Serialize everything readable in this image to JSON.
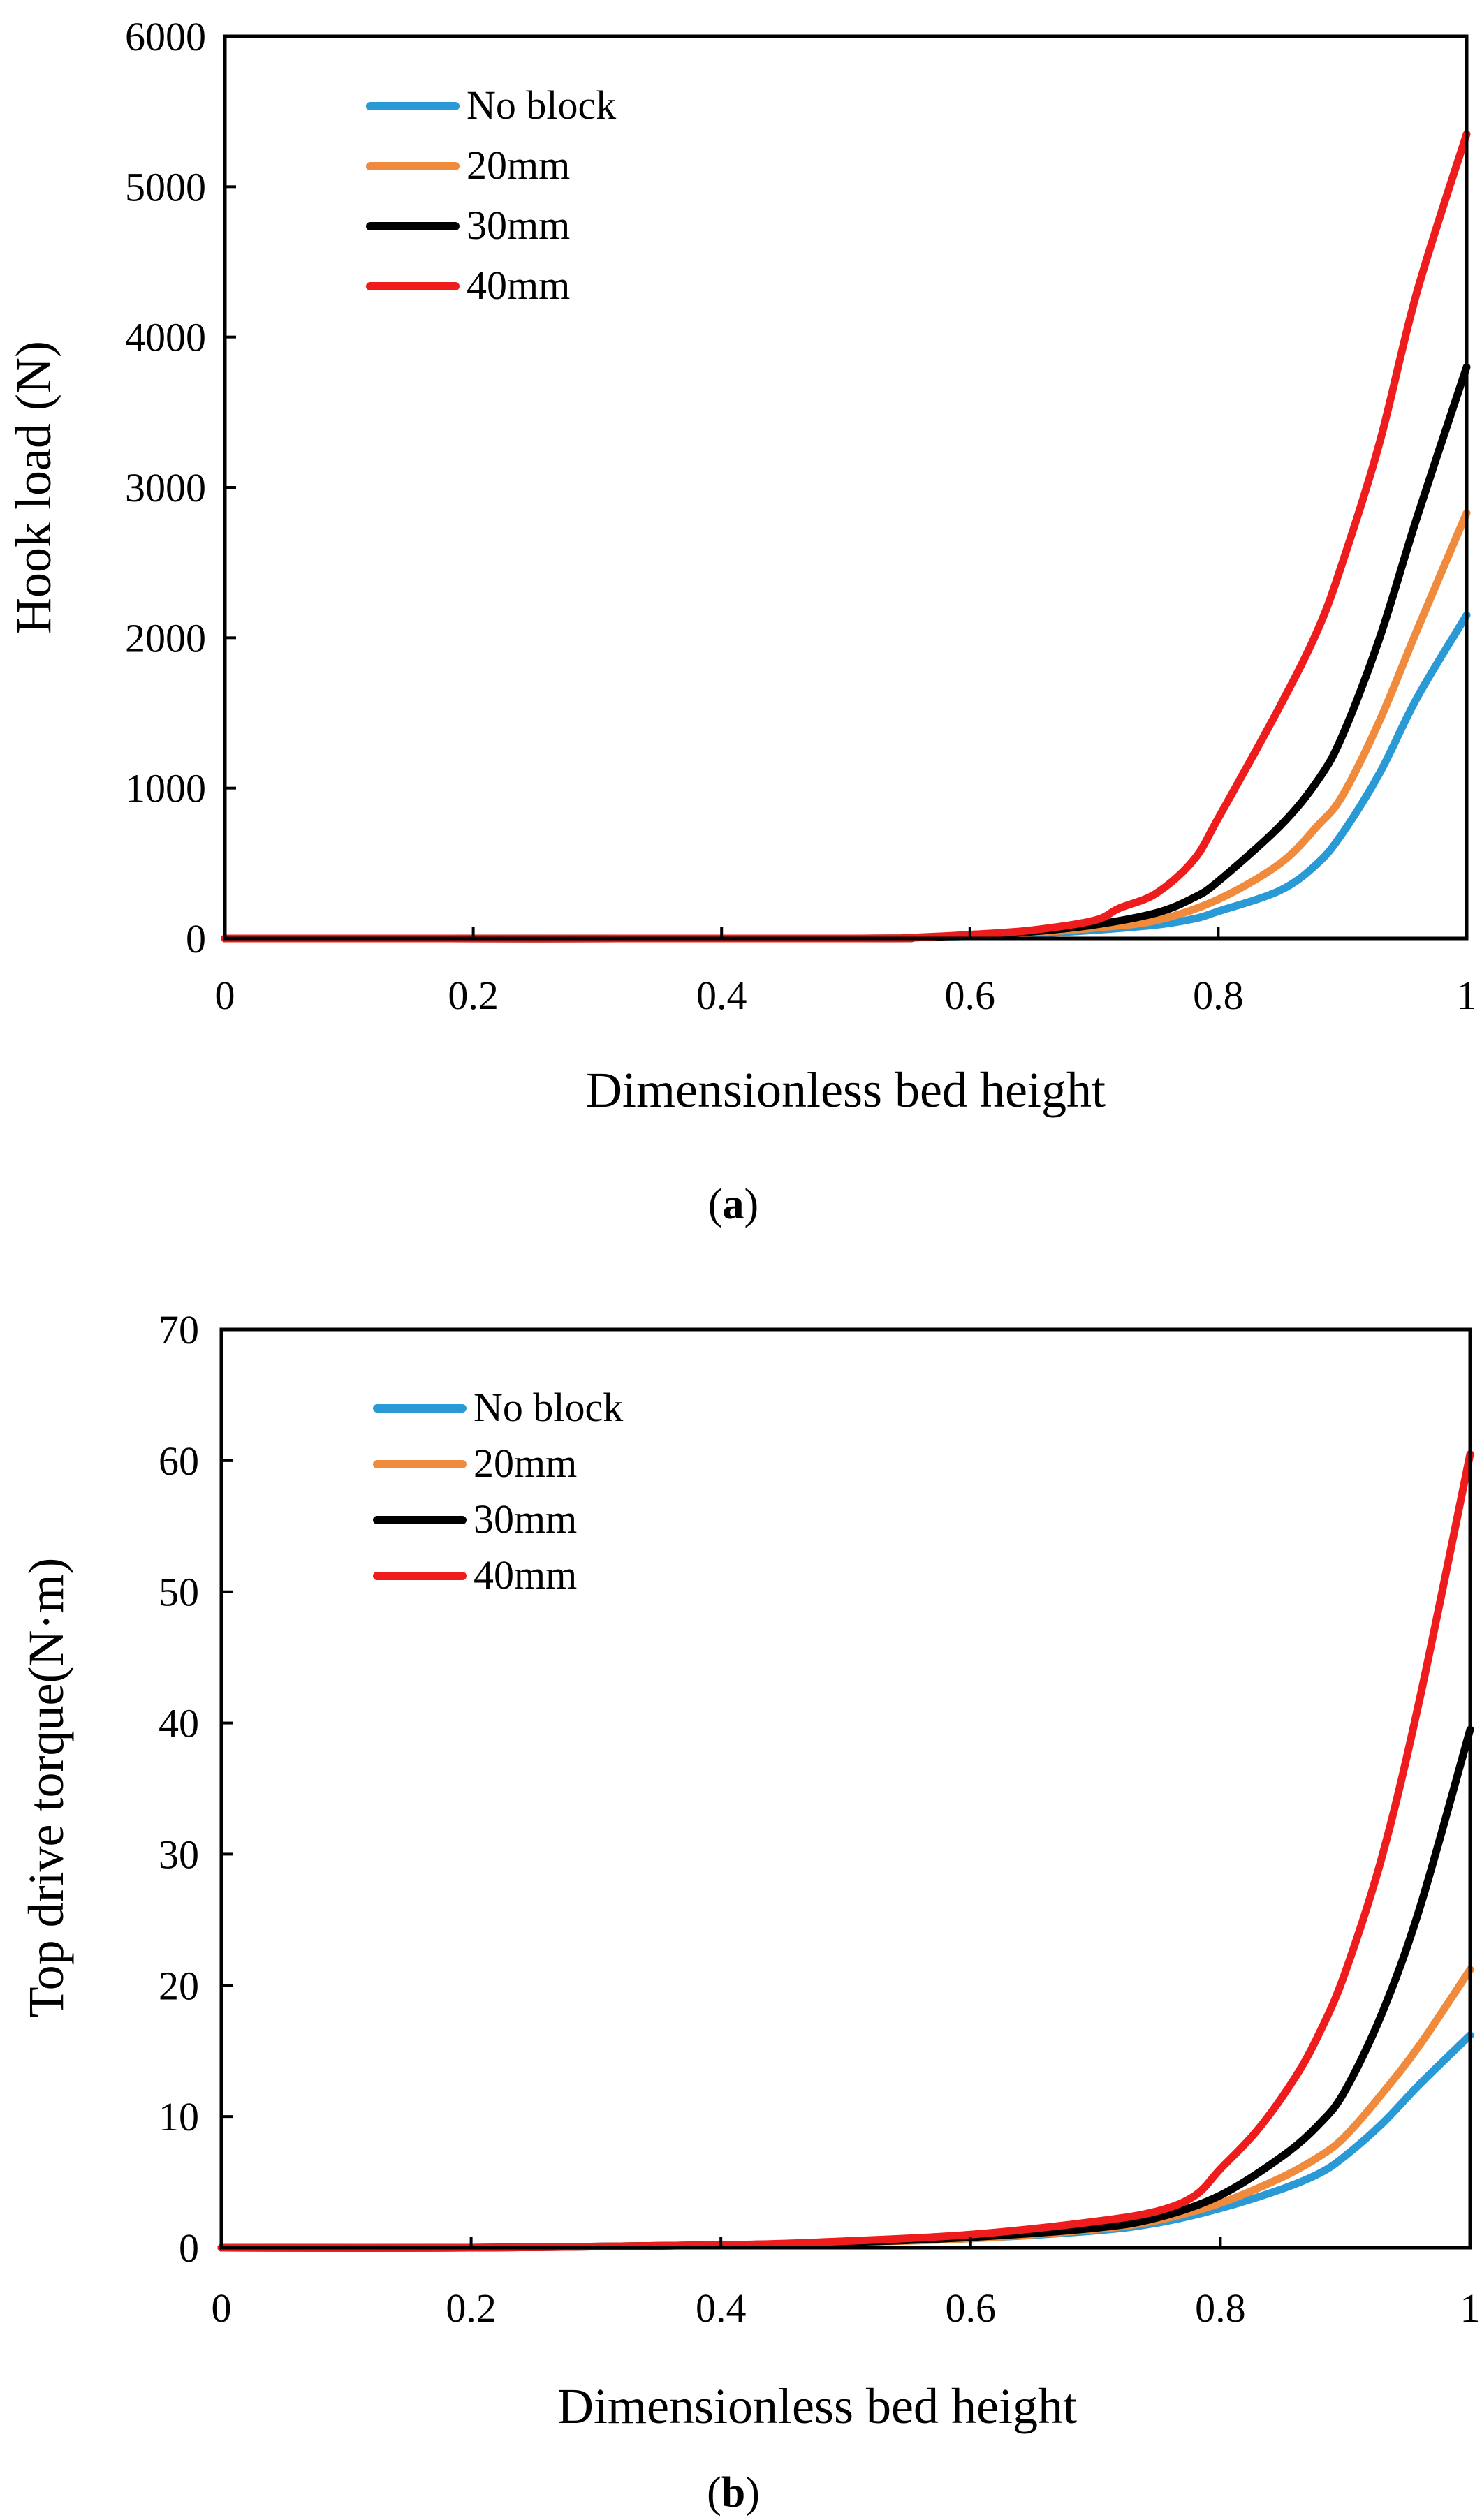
{
  "chart_data": [
    {
      "type": "line",
      "panel_label": "a",
      "title": "",
      "xlabel": "Dimensionless bed height",
      "ylabel": "Hook load (N)",
      "xlim": [
        0,
        1
      ],
      "ylim": [
        0,
        6000
      ],
      "x_ticks": [
        0,
        0.2,
        0.4,
        0.6,
        0.8,
        1
      ],
      "x_tick_labels": [
        "0",
        "0.2",
        "0.4",
        "0.6",
        "0.8",
        "1"
      ],
      "y_ticks": [
        0,
        1000,
        2000,
        3000,
        4000,
        5000,
        6000
      ],
      "y_tick_labels": [
        "0",
        "1000",
        "2000",
        "3000",
        "4000",
        "5000",
        "6000"
      ],
      "grid": false,
      "legend_position": "top-left",
      "series": [
        {
          "name": "No block",
          "color": "#2a9ad6",
          "x": [
            0,
            0.5,
            0.55,
            0.6,
            0.65,
            0.7,
            0.75,
            0.78,
            0.8,
            0.85,
            0.88,
            0.9,
            0.93,
            0.96,
            1.0
          ],
          "y": [
            0,
            0,
            5,
            15,
            30,
            55,
            90,
            130,
            180,
            320,
            500,
            700,
            1100,
            1600,
            2150
          ]
        },
        {
          "name": "20mm",
          "color": "#f08a3c",
          "x": [
            0,
            0.5,
            0.55,
            0.6,
            0.65,
            0.7,
            0.75,
            0.8,
            0.85,
            0.88,
            0.9,
            0.93,
            0.96,
            1.0
          ],
          "y": [
            0,
            0,
            5,
            18,
            38,
            70,
            120,
            260,
            500,
            750,
            950,
            1450,
            2050,
            2830
          ]
        },
        {
          "name": "30mm",
          "color": "#000000",
          "x": [
            0,
            0.5,
            0.55,
            0.6,
            0.65,
            0.7,
            0.75,
            0.78,
            0.8,
            0.85,
            0.88,
            0.9,
            0.93,
            0.96,
            1.0
          ],
          "y": [
            0,
            0,
            5,
            20,
            45,
            90,
            170,
            270,
            380,
            750,
            1050,
            1350,
            2000,
            2800,
            3800
          ]
        },
        {
          "name": "40mm",
          "color": "#ee1c1c",
          "x": [
            0,
            0.5,
            0.55,
            0.6,
            0.65,
            0.7,
            0.72,
            0.75,
            0.78,
            0.8,
            0.85,
            0.88,
            0.9,
            0.93,
            0.96,
            1.0
          ],
          "y": [
            0,
            0,
            5,
            25,
            55,
            120,
            200,
            300,
            520,
            800,
            1550,
            2050,
            2500,
            3300,
            4300,
            5350
          ]
        }
      ]
    },
    {
      "type": "line",
      "panel_label": "b",
      "title": "",
      "xlabel": "Dimensionless bed height",
      "ylabel": "Top drive torque(N·m)",
      "xlim": [
        0,
        1
      ],
      "ylim": [
        0,
        70
      ],
      "x_ticks": [
        0,
        0.2,
        0.4,
        0.6,
        0.8,
        1
      ],
      "x_tick_labels": [
        "0",
        "0.2",
        "0.4",
        "0.6",
        "0.8",
        "1"
      ],
      "y_ticks": [
        0,
        10,
        20,
        30,
        40,
        50,
        60,
        70
      ],
      "y_tick_labels": [
        "0",
        "10",
        "20",
        "30",
        "40",
        "50",
        "60",
        "70"
      ],
      "grid": false,
      "legend_position": "top-left",
      "series": [
        {
          "name": "No block",
          "color": "#2a9ad6",
          "x": [
            0,
            0.2,
            0.4,
            0.5,
            0.6,
            0.7,
            0.75,
            0.8,
            0.85,
            0.88,
            0.9,
            0.93,
            0.96,
            1.0
          ],
          "y": [
            0,
            0,
            0.2,
            0.4,
            0.7,
            1.3,
            1.9,
            3.0,
            4.5,
            5.7,
            7.0,
            9.5,
            12.5,
            16.2
          ]
        },
        {
          "name": "20mm",
          "color": "#f08a3c",
          "x": [
            0,
            0.2,
            0.4,
            0.5,
            0.6,
            0.7,
            0.75,
            0.8,
            0.85,
            0.88,
            0.9,
            0.93,
            0.96,
            1.0
          ],
          "y": [
            0,
            0,
            0.2,
            0.4,
            0.7,
            1.4,
            2.1,
            3.4,
            5.4,
            7.0,
            8.5,
            11.8,
            15.5,
            21.2
          ]
        },
        {
          "name": "30mm",
          "color": "#000000",
          "x": [
            0,
            0.2,
            0.4,
            0.5,
            0.6,
            0.7,
            0.75,
            0.8,
            0.85,
            0.88,
            0.9,
            0.93,
            0.96,
            1.0
          ],
          "y": [
            0,
            0,
            0.2,
            0.4,
            0.8,
            1.5,
            2.3,
            4.0,
            7.0,
            9.5,
            12.0,
            18.0,
            26.0,
            39.5
          ]
        },
        {
          "name": "40mm",
          "color": "#ee1c1c",
          "x": [
            0,
            0.2,
            0.4,
            0.5,
            0.6,
            0.7,
            0.75,
            0.78,
            0.8,
            0.83,
            0.86,
            0.88,
            0.9,
            0.93,
            0.96,
            1.0
          ],
          "y": [
            0,
            0,
            0.2,
            0.5,
            1.0,
            2.0,
            2.8,
            4.0,
            6.0,
            9.0,
            13.0,
            16.5,
            21.0,
            30.0,
            42.0,
            60.5
          ]
        }
      ]
    }
  ]
}
